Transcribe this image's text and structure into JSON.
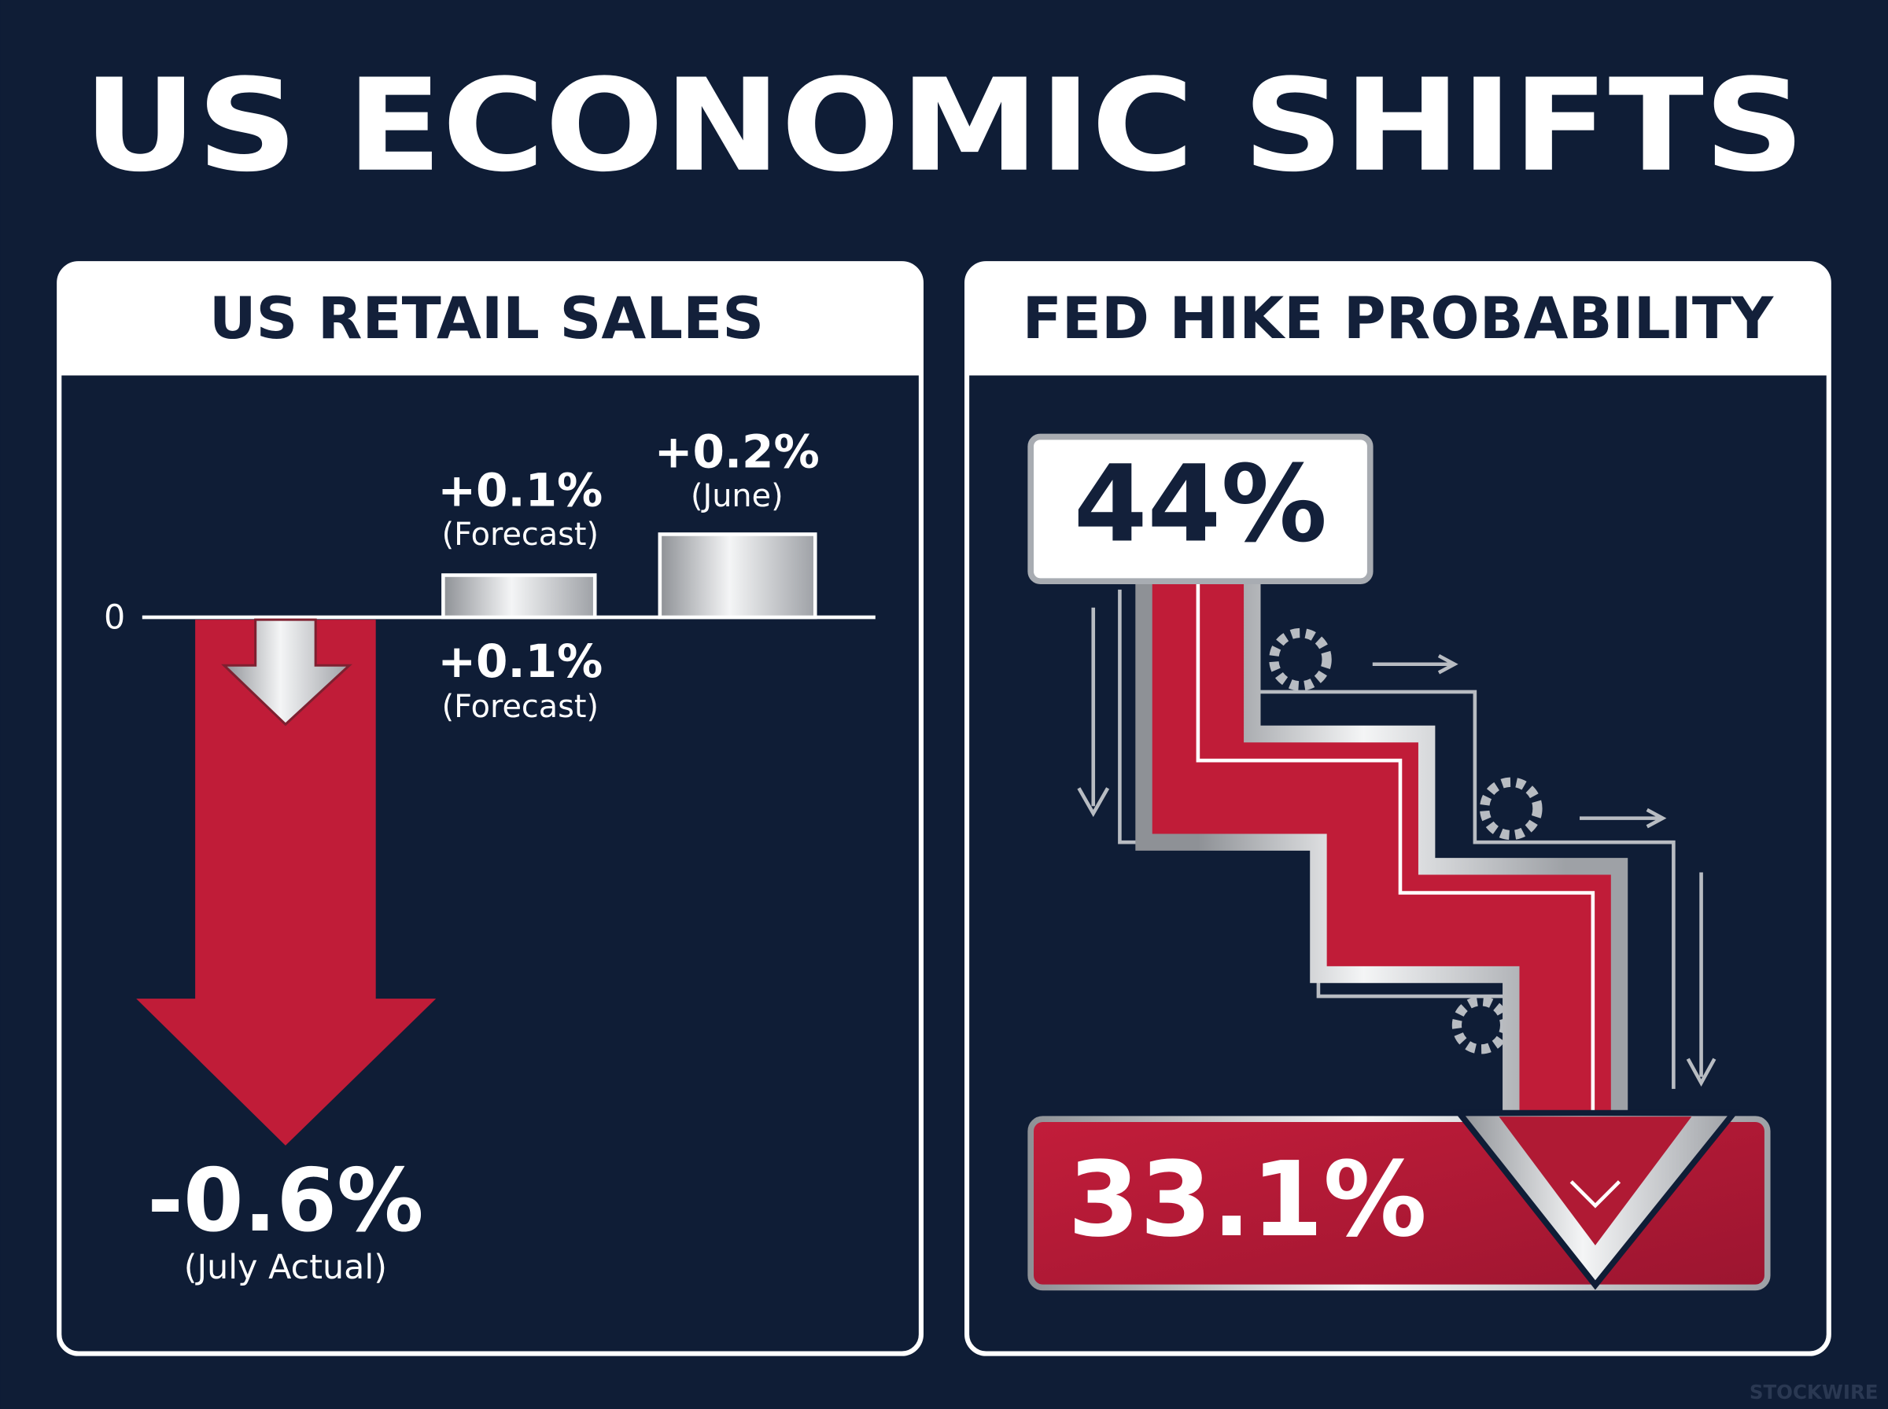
{
  "title": "US ECONOMIC SHIFTS",
  "retail_sales": {
    "header": "US RETAIL SALES",
    "zero_label": "0",
    "forecast_top": {
      "value": "+0.1%",
      "label": "(Forecast)"
    },
    "june": {
      "value": "+0.2%",
      "label": "(June)"
    },
    "forecast_bottom": {
      "value": "+0.1%",
      "label": "(Forecast)"
    },
    "july": {
      "value": "-0.6%",
      "label": "(July Actual)"
    }
  },
  "fed_hike": {
    "header": "FED HIKE PROBABILITY",
    "from": "44%",
    "to": "33.1%"
  },
  "watermark": "STOCKWIRE"
}
